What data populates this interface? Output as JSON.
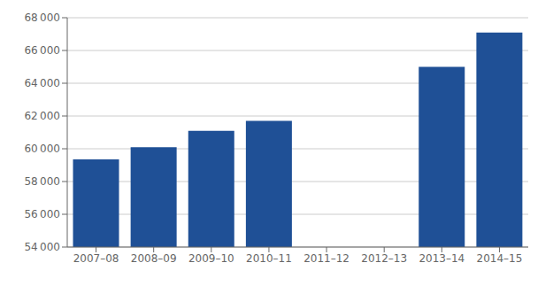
{
  "chart_data": {
    "type": "bar",
    "categories": [
      "2007–08",
      "2008–09",
      "2009–10",
      "2010–11",
      "2011–12",
      "2012–13",
      "2013–14",
      "2014–15"
    ],
    "values": [
      59350,
      60100,
      61100,
      61700,
      null,
      null,
      65000,
      67100
    ],
    "color": "#1f5096",
    "ylim": [
      54000,
      68000
    ],
    "yticks": [
      {
        "value": 54000,
        "label": "54 000"
      },
      {
        "value": 56000,
        "label": "56 000"
      },
      {
        "value": 58000,
        "label": "58 000"
      },
      {
        "value": 60000,
        "label": "60 000"
      },
      {
        "value": 62000,
        "label": "62 000"
      },
      {
        "value": 64000,
        "label": "64 000"
      },
      {
        "value": 66000,
        "label": "66 000"
      },
      {
        "value": 68000,
        "label": "68 000"
      }
    ],
    "grid": true
  }
}
